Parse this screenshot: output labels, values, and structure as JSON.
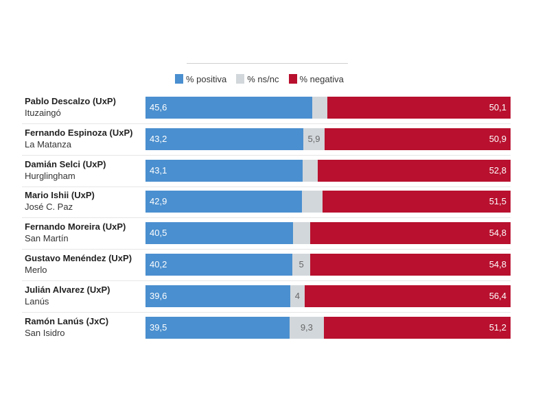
{
  "legend": {
    "positive": "% positiva",
    "nsnc": "% ns/nc",
    "negative": "% negativa"
  },
  "colors": {
    "positive": "#4a8fcf",
    "nsnc": "#d2d7db",
    "negative": "#b8102e"
  },
  "chart_data": {
    "type": "bar",
    "stacked": true,
    "orientation": "horizontal",
    "categories": [
      {
        "name": "Pablo Descalzo (UxP)",
        "place": "Ituzaingó"
      },
      {
        "name": "Fernando Espinoza (UxP)",
        "place": "La Matanza"
      },
      {
        "name": "Damián Selci (UxP)",
        "place": "Hurglingham"
      },
      {
        "name": "Mario Ishii (UxP)",
        "place": "José C. Paz"
      },
      {
        "name": "Fernando Moreira (UxP)",
        "place": "San Martín"
      },
      {
        "name": "Gustavo Menéndez (UxP)",
        "place": "Merlo"
      },
      {
        "name": "Julián Alvarez (UxP)",
        "place": "Lanús"
      },
      {
        "name": "Ramón Lanús (JxC)",
        "place": "San Isidro"
      }
    ],
    "series": [
      {
        "name": "% positiva",
        "values": [
          45.6,
          43.2,
          43.1,
          42.9,
          40.5,
          40.2,
          39.6,
          39.5
        ],
        "labels": [
          "45,6",
          "43,2",
          "43,1",
          "42,9",
          "40,5",
          "40,2",
          "39,6",
          "39,5"
        ]
      },
      {
        "name": "% ns/nc",
        "values": [
          4.3,
          5.9,
          4.1,
          5.6,
          4.7,
          5,
          4,
          9.3
        ],
        "labels": [
          "",
          "5,9",
          "",
          "",
          "",
          "5",
          "4",
          "9,3"
        ]
      },
      {
        "name": "% negativa",
        "values": [
          50.1,
          50.9,
          52.8,
          51.5,
          54.8,
          54.8,
          56.4,
          51.2
        ],
        "labels": [
          "50,1",
          "50,9",
          "52,8",
          "51,5",
          "54,8",
          "54,8",
          "56,4",
          "51,2"
        ]
      }
    ],
    "xlim": [
      0,
      100
    ]
  }
}
